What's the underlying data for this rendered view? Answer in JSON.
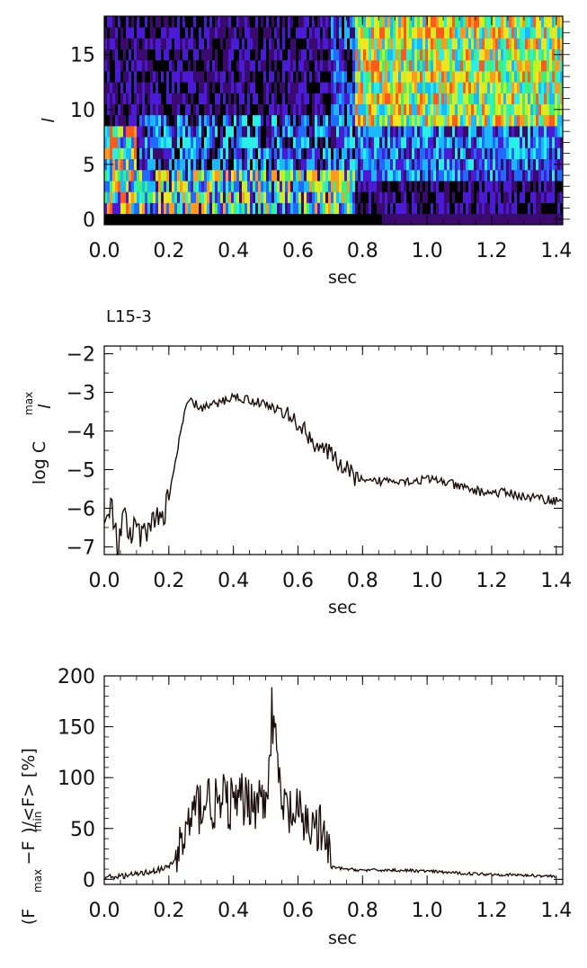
{
  "panel_title": "L15-3",
  "chart_data": [
    {
      "type": "heatmap",
      "xlabel": "sec",
      "ylabel": "l",
      "xlim": [
        0.0,
        1.42
      ],
      "ylim": [
        -0.5,
        18.5
      ],
      "x_ticks": [
        "0.0",
        "0.2",
        "0.4",
        "0.6",
        "0.8",
        "1.0",
        "1.2",
        "1.4"
      ],
      "y_ticks": [
        "0",
        "5",
        "10",
        "15"
      ],
      "colormap": [
        "#000000",
        "#3a0a6e",
        "#4a1ad6",
        "#1f6bff",
        "#19b8ff",
        "#28f0e6",
        "#3cf07a",
        "#c8f01e",
        "#f0e61e",
        "#ff9a1e",
        "#ff5a1e"
      ],
      "rows": 19,
      "note_regions": [
        {
          "x_range": [
            0.0,
            0.1
          ],
          "dominant": "low l bright, mid l orange"
        },
        {
          "x_range": [
            0.1,
            0.78
          ],
          "dominant": "dark purple high l, mixed low l"
        },
        {
          "x_range": [
            0.78,
            1.42
          ],
          "dominant": "bright green/yellow/orange for l>8"
        }
      ]
    },
    {
      "type": "line",
      "xlabel": "sec",
      "ylabel": "log C",
      "ylabel_sub": "l",
      "ylabel_sup": "max",
      "xlim": [
        0.0,
        1.42
      ],
      "ylim": [
        -7.2,
        -1.8
      ],
      "x_ticks": [
        "0.0",
        "0.2",
        "0.4",
        "0.6",
        "0.8",
        "1.0",
        "1.2",
        "1.4"
      ],
      "y_ticks": [
        "-2",
        "-3",
        "-4",
        "-5",
        "-6",
        "-7"
      ],
      "series": [
        {
          "x": [
            0.0,
            0.02,
            0.04,
            0.06,
            0.08,
            0.1,
            0.12,
            0.14,
            0.16,
            0.18,
            0.2,
            0.22,
            0.24,
            0.26,
            0.28,
            0.3,
            0.35,
            0.4,
            0.45,
            0.5,
            0.55,
            0.6,
            0.65,
            0.7,
            0.75,
            0.8,
            0.85,
            0.9,
            0.95,
            1.0,
            1.05,
            1.1,
            1.15,
            1.2,
            1.25,
            1.3,
            1.35,
            1.4,
            1.42
          ],
          "y": [
            -6.6,
            -5.9,
            -7.0,
            -6.3,
            -6.8,
            -6.5,
            -6.9,
            -6.2,
            -6.4,
            -6.1,
            -5.8,
            -4.8,
            -3.9,
            -3.2,
            -3.3,
            -3.4,
            -3.3,
            -3.1,
            -3.2,
            -3.3,
            -3.5,
            -3.8,
            -4.3,
            -4.6,
            -5.0,
            -5.35,
            -5.3,
            -5.25,
            -5.3,
            -5.25,
            -5.3,
            -5.45,
            -5.55,
            -5.6,
            -5.6,
            -5.7,
            -5.75,
            -5.8,
            -5.85
          ],
          "noise": 0.12
        }
      ]
    },
    {
      "type": "line",
      "xlabel": "sec",
      "ylabel": "(F  -F  )/<F> [%]",
      "ylabel_parts": [
        "(F",
        "max",
        "−F",
        "min",
        ")/<F>  [%]"
      ],
      "xlim": [
        0.0,
        1.42
      ],
      "ylim": [
        -5,
        200
      ],
      "x_ticks": [
        "0.0",
        "0.2",
        "0.4",
        "0.6",
        "0.8",
        "1.0",
        "1.2",
        "1.4"
      ],
      "y_ticks": [
        "0",
        "50",
        "100",
        "150",
        "200"
      ],
      "series": [
        {
          "x": [
            0.0,
            0.05,
            0.1,
            0.15,
            0.2,
            0.22,
            0.25,
            0.28,
            0.3,
            0.32,
            0.35,
            0.38,
            0.4,
            0.45,
            0.5,
            0.52,
            0.55,
            0.6,
            0.63,
            0.66,
            0.69,
            0.7,
            0.75,
            0.8,
            0.9,
            1.0,
            1.1,
            1.2,
            1.3,
            1.4
          ],
          "y": [
            2,
            3,
            5,
            8,
            12,
            20,
            45,
            65,
            75,
            80,
            70,
            78,
            72,
            80,
            75,
            165,
            70,
            60,
            55,
            50,
            35,
            12,
            10,
            9,
            9,
            8,
            6,
            5,
            4,
            3
          ],
          "noise": 18
        }
      ]
    }
  ]
}
